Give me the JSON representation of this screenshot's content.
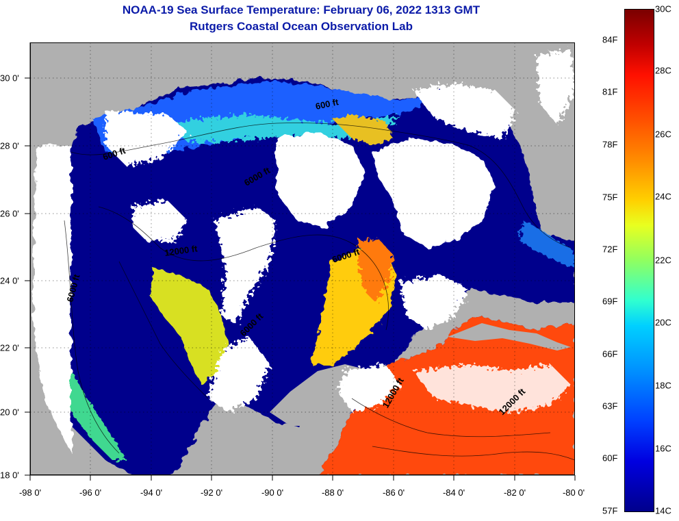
{
  "title_line1": "NOAA-19 Sea Surface Temperature:  February 06, 2022 1313 GMT",
  "title_line2": "Rutgers Coastal Ocean Observation Lab",
  "x_ticks": [
    "-98 0'",
    "-96 0'",
    "-94 0'",
    "-92 0'",
    "-90 0'",
    "-88 0'",
    "-86 0'",
    "-84 0'",
    "-82 0'",
    "-80 0'"
  ],
  "y_ticks": [
    "30 0'",
    "28 0'",
    "26 0'",
    "24 0'",
    "22 0'",
    "20 0'",
    "18 0'"
  ],
  "colorbar": {
    "f_labels": [
      "84F",
      "81F",
      "78F",
      "75F",
      "72F",
      "69F",
      "66F",
      "63F",
      "60F",
      "57F"
    ],
    "c_labels": [
      "30C",
      "28C",
      "26C",
      "24C",
      "22C",
      "20C",
      "18C",
      "16C",
      "14C"
    ],
    "min_c": 14,
    "max_c": 30
  },
  "contour_labels": [
    "600 ft",
    "600 ft",
    "6000 ft",
    "12000 ft",
    "6000 ft",
    "6000 ft",
    "6000 ft",
    "12000 ft",
    "12000 ft"
  ],
  "colors": {
    "land": "#b0b0b0",
    "cloud": "#ffffff",
    "cold": "#00008c",
    "warm": "#ff4000",
    "title": "#0a1aa8"
  }
}
